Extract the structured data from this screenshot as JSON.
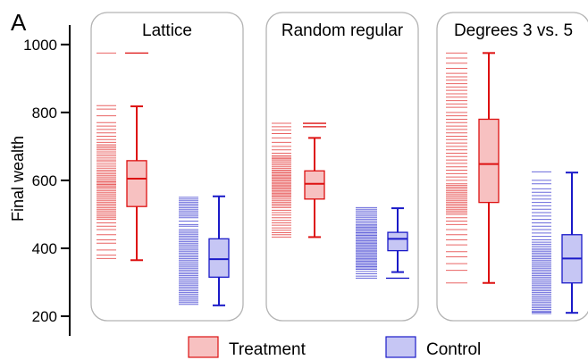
{
  "panel_letter": "A",
  "colors": {
    "treatment_stroke": "#dd1111",
    "treatment_fill": "#f7c1c1",
    "control_stroke": "#1a1ac8",
    "control_fill": "#c6c6f4",
    "panel_border": "#b3b3b3"
  },
  "legend": {
    "treatment_label": "Treatment",
    "control_label": "Control"
  },
  "chart_data": {
    "type": "box",
    "ylabel": "Final wealth",
    "ylim": [
      200,
      1050
    ],
    "yticks": [
      200,
      400,
      600,
      800,
      1000
    ],
    "grid": false,
    "legend_position": "bottom",
    "panels": [
      {
        "title": "Lattice",
        "treatment": {
          "box": {
            "min": 365,
            "q1": 523,
            "median": 605,
            "q3": 658,
            "max": 818,
            "outliers": [
              975
            ]
          },
          "values": [
            975,
            820,
            810,
            790,
            770,
            760,
            750,
            740,
            730,
            720,
            712,
            705,
            700,
            695,
            690,
            684,
            678,
            672,
            666,
            660,
            655,
            648,
            642,
            636,
            630,
            625,
            620,
            615,
            610,
            605,
            600,
            596,
            592,
            588,
            584,
            580,
            575,
            570,
            565,
            560,
            555,
            550,
            545,
            540,
            535,
            530,
            525,
            520,
            515,
            510,
            505,
            500,
            495,
            490,
            485,
            475,
            465,
            455,
            440,
            425,
            415,
            395,
            380,
            370
          ]
        },
        "control": {
          "box": {
            "min": 232,
            "q1": 315,
            "median": 368,
            "q3": 428,
            "max": 553
          },
          "values": [
            550,
            545,
            540,
            535,
            530,
            525,
            520,
            515,
            510,
            505,
            500,
            495,
            490,
            480,
            470,
            465,
            455,
            450,
            445,
            440,
            435,
            430,
            425,
            420,
            415,
            410,
            405,
            400,
            395,
            390,
            385,
            380,
            375,
            370,
            365,
            360,
            355,
            350,
            345,
            340,
            335,
            330,
            325,
            320,
            315,
            310,
            305,
            300,
            295,
            290,
            285,
            280,
            275,
            270,
            265,
            260,
            255,
            250,
            245,
            240,
            235
          ]
        }
      },
      {
        "title": "Random regular",
        "treatment": {
          "box": {
            "min": 433,
            "q1": 545,
            "median": 590,
            "q3": 628,
            "max": 725,
            "outliers": [
              768,
              758
            ]
          },
          "values": [
            768,
            758,
            748,
            738,
            725,
            712,
            700,
            690,
            680,
            672,
            668,
            664,
            660,
            655,
            650,
            645,
            640,
            635,
            630,
            626,
            622,
            618,
            614,
            610,
            606,
            602,
            598,
            594,
            590,
            586,
            582,
            578,
            574,
            570,
            566,
            562,
            558,
            554,
            550,
            545,
            540,
            535,
            530,
            525,
            520,
            512,
            505,
            498,
            490,
            482,
            475,
            468,
            460,
            453,
            446,
            440,
            433
          ]
        },
        "control": {
          "box": {
            "min": 330,
            "q1": 393,
            "median": 428,
            "q3": 447,
            "max": 518,
            "outliers": [
              312
            ]
          },
          "values": [
            520,
            515,
            510,
            505,
            500,
            495,
            490,
            485,
            480,
            475,
            470,
            466,
            462,
            458,
            454,
            450,
            446,
            442,
            438,
            434,
            430,
            426,
            422,
            418,
            414,
            410,
            406,
            402,
            398,
            394,
            390,
            386,
            382,
            378,
            374,
            370,
            366,
            362,
            358,
            354,
            350,
            346,
            342,
            338,
            332,
            325,
            318,
            312
          ]
        }
      },
      {
        "title": "Degrees 3 vs. 5",
        "treatment": {
          "box": {
            "min": 298,
            "q1": 535,
            "median": 648,
            "q3": 780,
            "max": 975
          },
          "values": [
            975,
            960,
            945,
            930,
            915,
            905,
            895,
            885,
            875,
            865,
            855,
            845,
            835,
            825,
            815,
            800,
            790,
            780,
            770,
            760,
            750,
            740,
            730,
            720,
            710,
            700,
            690,
            680,
            670,
            660,
            650,
            640,
            630,
            620,
            610,
            600,
            590,
            585,
            580,
            575,
            570,
            565,
            560,
            555,
            550,
            545,
            540,
            535,
            530,
            525,
            520,
            515,
            510,
            505,
            500,
            490,
            480,
            470,
            455,
            440,
            425,
            410,
            390,
            375,
            355,
            335,
            298
          ]
        },
        "control": {
          "box": {
            "min": 210,
            "q1": 298,
            "median": 370,
            "q3": 440,
            "max": 623
          },
          "values": [
            625,
            600,
            590,
            575,
            565,
            555,
            545,
            535,
            525,
            515,
            505,
            495,
            485,
            475,
            465,
            455,
            445,
            435,
            425,
            418,
            412,
            406,
            400,
            395,
            390,
            385,
            380,
            375,
            370,
            365,
            360,
            355,
            350,
            345,
            340,
            335,
            330,
            325,
            320,
            315,
            310,
            305,
            300,
            295,
            290,
            285,
            280,
            275,
            270,
            265,
            260,
            255,
            250,
            245,
            240,
            235,
            230,
            225,
            220,
            215,
            212,
            208
          ]
        }
      }
    ]
  }
}
